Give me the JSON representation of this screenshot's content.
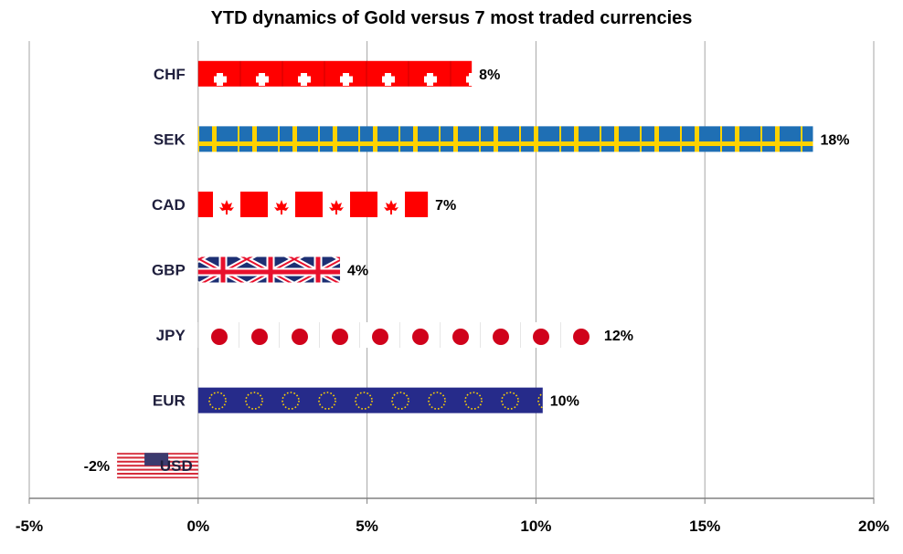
{
  "chart_data": {
    "type": "bar",
    "orientation": "horizontal",
    "title": "YTD dynamics of Gold versus 7 most traded currencies",
    "categories": [
      "CHF",
      "SEK",
      "CAD",
      "GBP",
      "JPY",
      "EUR",
      "USD"
    ],
    "values": [
      8.1,
      18.2,
      6.8,
      4.2,
      11.8,
      10.2,
      -2.4
    ],
    "data_labels": [
      "8%",
      "18%",
      "7%",
      "4%",
      "12%",
      "10%",
      "-2%"
    ],
    "xlabel": "",
    "ylabel": "",
    "xlim": [
      -5,
      20
    ],
    "xticks": [
      -5,
      0,
      5,
      10,
      15,
      20
    ],
    "xtick_labels": [
      "-5%",
      "0%",
      "5%",
      "10%",
      "15%",
      "20%"
    ],
    "grid": "vertical",
    "legend": "none",
    "bar_fills": [
      "flag-switzerland",
      "flag-sweden",
      "flag-canada",
      "flag-uk",
      "flag-japan",
      "flag-eu",
      "flag-usa"
    ]
  },
  "colors": {
    "grid": "#a6a6a6",
    "axis": "#808080",
    "text": "#000000",
    "category_text": "#1f1f3d",
    "chf_red": "#ff0000",
    "sek_blue": "#1f6fb4",
    "sek_yellow": "#ffd200",
    "cad_red": "#ff0000",
    "uk_blue": "#1c2f73",
    "uk_red": "#e8112d",
    "jpy_red": "#d0021b",
    "eu_blue": "#262b8a",
    "eu_gold": "#ffd200",
    "us_red": "#d52b3a",
    "us_blue": "#3c3b6e"
  }
}
